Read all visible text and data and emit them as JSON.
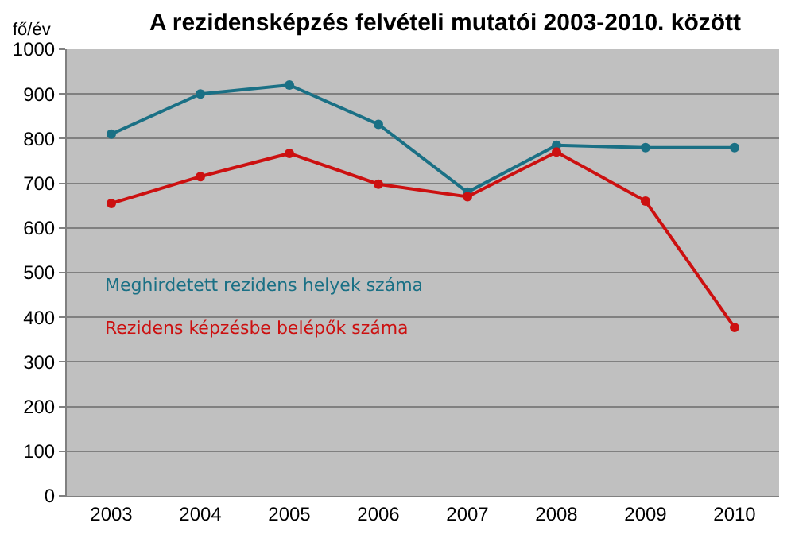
{
  "chart_data": {
    "type": "line",
    "title": "A rezidensképzés felvételi mutatói 2003-2010. között",
    "ylabel": "fő/év",
    "categories": [
      "2003",
      "2004",
      "2005",
      "2006",
      "2007",
      "2008",
      "2009",
      "2010"
    ],
    "series": [
      {
        "name": "Meghirdetett rezidens helyek száma",
        "color": "#1a7085",
        "values": [
          810,
          900,
          920,
          832,
          680,
          785,
          780,
          780
        ]
      },
      {
        "name": "Rezidens képzésbe belépők száma",
        "color": "#cc1010",
        "values": [
          655,
          715,
          767,
          698,
          670,
          770,
          660,
          377
        ]
      }
    ],
    "ylim": [
      0,
      1000
    ],
    "yticks": [
      0,
      100,
      200,
      300,
      400,
      500,
      600,
      700,
      800,
      900,
      1000
    ],
    "grid": "y",
    "legend": "left",
    "marker": "circle",
    "line_style": "solid"
  }
}
